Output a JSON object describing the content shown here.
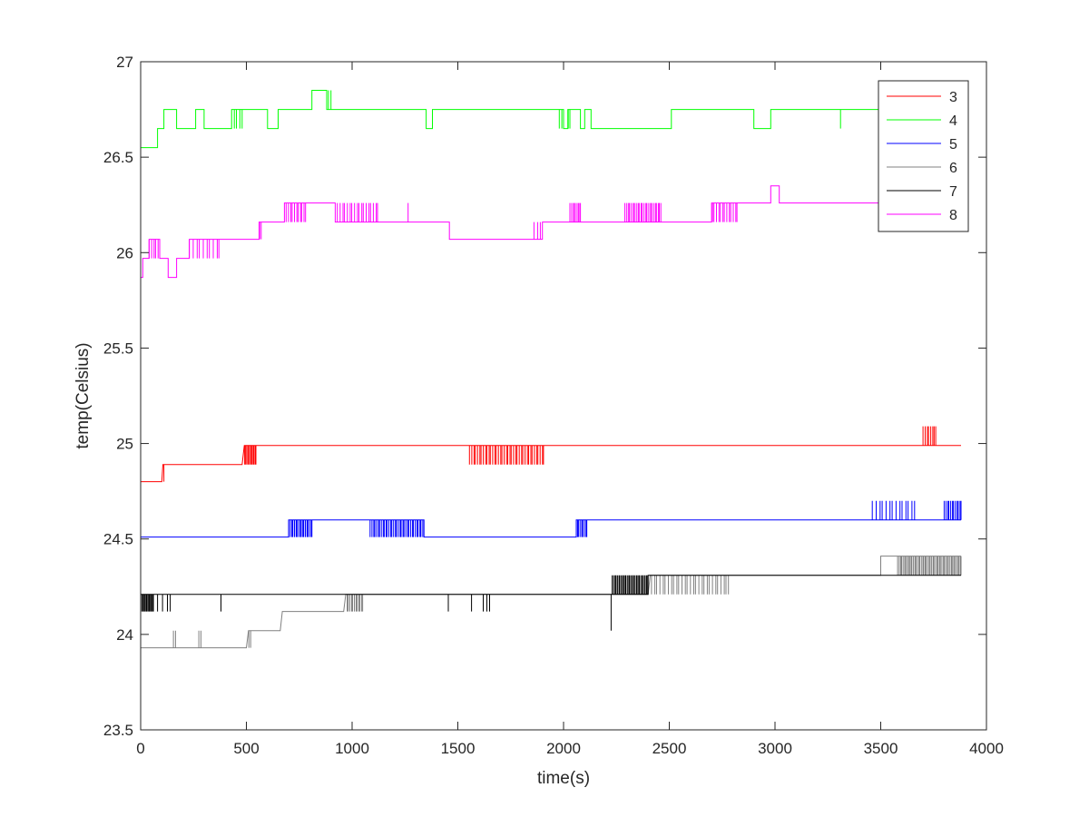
{
  "chart_data": {
    "type": "line",
    "title": "",
    "xlabel": "time(s)",
    "ylabel": "temp(Celsius)",
    "xlim": [
      0,
      4000
    ],
    "ylim": [
      23.5,
      27
    ],
    "xticks": [
      0,
      500,
      1000,
      1500,
      2000,
      2500,
      3000,
      3500,
      4000
    ],
    "yticks": [
      23.5,
      24,
      24.5,
      25,
      25.5,
      26,
      26.5,
      27
    ],
    "grid": false,
    "legend": {
      "position": "top-right",
      "entries": [
        "3",
        "4",
        "5",
        "6",
        "7",
        "8"
      ]
    },
    "series": [
      {
        "name": "3",
        "color": "#ff0000",
        "step": true,
        "points": [
          [
            0,
            24.8
          ],
          [
            100,
            24.8
          ],
          [
            105,
            24.89
          ],
          [
            480,
            24.89
          ],
          [
            490,
            24.99
          ],
          [
            3880,
            24.99
          ]
        ],
        "flicker": [
          {
            "from": 90,
            "to": 110,
            "count": 4,
            "value": 24.8
          },
          {
            "from": 480,
            "to": 545,
            "count": 14,
            "value": 24.89
          },
          {
            "from": 1555,
            "to": 1905,
            "count": 40,
            "value": 24.89
          },
          {
            "from": 3700,
            "to": 3760,
            "count": 8,
            "value": 25.09
          }
        ]
      },
      {
        "name": "4",
        "color": "#00ff00",
        "step": true,
        "points": [
          [
            0,
            26.55
          ],
          [
            80,
            26.55
          ],
          [
            80,
            26.65
          ],
          [
            110,
            26.65
          ],
          [
            110,
            26.75
          ],
          [
            170,
            26.75
          ],
          [
            170,
            26.65
          ],
          [
            260,
            26.65
          ],
          [
            260,
            26.75
          ],
          [
            300,
            26.75
          ],
          [
            300,
            26.65
          ],
          [
            430,
            26.65
          ],
          [
            430,
            26.75
          ],
          [
            600,
            26.75
          ],
          [
            600,
            26.65
          ],
          [
            650,
            26.65
          ],
          [
            650,
            26.75
          ],
          [
            810,
            26.75
          ],
          [
            810,
            26.85
          ],
          [
            880,
            26.85
          ],
          [
            880,
            26.75
          ],
          [
            1350,
            26.75
          ],
          [
            1350,
            26.65
          ],
          [
            1380,
            26.65
          ],
          [
            1380,
            26.75
          ],
          [
            2000,
            26.75
          ],
          [
            2000,
            26.65
          ],
          [
            2020,
            26.65
          ],
          [
            2020,
            26.75
          ],
          [
            2080,
            26.75
          ],
          [
            2080,
            26.65
          ],
          [
            2100,
            26.65
          ],
          [
            2100,
            26.75
          ],
          [
            2130,
            26.75
          ],
          [
            2130,
            26.65
          ],
          [
            2510,
            26.65
          ],
          [
            2510,
            26.75
          ],
          [
            2900,
            26.75
          ],
          [
            2900,
            26.65
          ],
          [
            2980,
            26.65
          ],
          [
            2980,
            26.75
          ],
          [
            3880,
            26.75
          ]
        ],
        "flicker": [
          {
            "from": 410,
            "to": 480,
            "count": 6,
            "value": 26.65
          },
          {
            "from": 600,
            "to": 650,
            "count": 6,
            "value": 26.65
          },
          {
            "from": 850,
            "to": 900,
            "count": 5,
            "value": 26.85
          },
          {
            "from": 1980,
            "to": 2030,
            "count": 6,
            "value": 26.65
          },
          {
            "from": 2250,
            "to": 2280,
            "count": 4,
            "value": 26.65
          },
          {
            "from": 3310,
            "to": 3315,
            "count": 1,
            "value": 26.65
          }
        ]
      },
      {
        "name": "5",
        "color": "#0000ff",
        "step": true,
        "points": [
          [
            0,
            24.51
          ],
          [
            700,
            24.51
          ],
          [
            700,
            24.6
          ],
          [
            1340,
            24.6
          ],
          [
            1340,
            24.51
          ],
          [
            2060,
            24.51
          ],
          [
            2060,
            24.6
          ],
          [
            3880,
            24.6
          ]
        ],
        "flicker": [
          {
            "from": 700,
            "to": 810,
            "count": 18,
            "value": 24.51
          },
          {
            "from": 1085,
            "to": 1340,
            "count": 36,
            "value": 24.51
          },
          {
            "from": 2050,
            "to": 2110,
            "count": 10,
            "value": 24.51
          },
          {
            "from": 3460,
            "to": 3660,
            "count": 14,
            "value": 24.7
          },
          {
            "from": 3800,
            "to": 3880,
            "count": 12,
            "value": 24.7
          }
        ]
      },
      {
        "name": "6",
        "color": "#808080",
        "step": true,
        "points": [
          [
            0,
            23.93
          ],
          [
            500,
            23.93
          ],
          [
            510,
            24.02
          ],
          [
            660,
            24.02
          ],
          [
            670,
            24.12
          ],
          [
            960,
            24.12
          ],
          [
            970,
            24.21
          ],
          [
            2400,
            24.21
          ],
          [
            2410,
            24.31
          ],
          [
            3500,
            24.31
          ],
          [
            3500,
            24.41
          ],
          [
            3880,
            24.41
          ]
        ],
        "flicker": [
          {
            "from": 155,
            "to": 165,
            "count": 2,
            "value": 24.02
          },
          {
            "from": 275,
            "to": 285,
            "count": 2,
            "value": 24.02
          },
          {
            "from": 500,
            "to": 520,
            "count": 3,
            "value": 23.93
          },
          {
            "from": 960,
            "to": 1050,
            "count": 14,
            "value": 24.12
          },
          {
            "from": 2400,
            "to": 2780,
            "count": 30,
            "value": 24.21
          },
          {
            "from": 3580,
            "to": 3880,
            "count": 50,
            "value": 24.31
          }
        ]
      },
      {
        "name": "7",
        "color": "#000000",
        "step": true,
        "points": [
          [
            0,
            24.21
          ],
          [
            2400,
            24.21
          ],
          [
            2400,
            24.31
          ],
          [
            3880,
            24.31
          ]
        ],
        "flicker": [
          {
            "from": 0,
            "to": 60,
            "count": 14,
            "value": 24.12
          },
          {
            "from": 80,
            "to": 140,
            "count": 4,
            "value": 24.12
          },
          {
            "from": 380,
            "to": 385,
            "count": 1,
            "value": 24.12
          },
          {
            "from": 1455,
            "to": 1460,
            "count": 1,
            "value": 24.12
          },
          {
            "from": 1565,
            "to": 1570,
            "count": 1,
            "value": 24.12
          },
          {
            "from": 1620,
            "to": 1650,
            "count": 3,
            "value": 24.12
          },
          {
            "from": 2225,
            "to": 2230,
            "count": 1,
            "value": 24.02
          },
          {
            "from": 2230,
            "to": 2400,
            "count": 30,
            "value": 24.31
          }
        ]
      },
      {
        "name": "8",
        "color": "#ff00ff",
        "step": true,
        "points": [
          [
            0,
            25.87
          ],
          [
            10,
            25.87
          ],
          [
            10,
            25.97
          ],
          [
            40,
            25.97
          ],
          [
            40,
            26.07
          ],
          [
            90,
            26.07
          ],
          [
            90,
            25.97
          ],
          [
            130,
            25.97
          ],
          [
            130,
            25.87
          ],
          [
            170,
            25.87
          ],
          [
            170,
            25.97
          ],
          [
            230,
            25.97
          ],
          [
            230,
            26.07
          ],
          [
            560,
            26.07
          ],
          [
            560,
            26.16
          ],
          [
            680,
            26.16
          ],
          [
            680,
            26.26
          ],
          [
            920,
            26.26
          ],
          [
            920,
            26.16
          ],
          [
            1460,
            26.16
          ],
          [
            1460,
            26.07
          ],
          [
            1900,
            26.07
          ],
          [
            1900,
            26.16
          ],
          [
            2700,
            26.16
          ],
          [
            2700,
            26.26
          ],
          [
            2980,
            26.26
          ],
          [
            2980,
            26.35
          ],
          [
            3020,
            26.35
          ],
          [
            3020,
            26.26
          ],
          [
            3880,
            26.26
          ]
        ],
        "flicker": [
          {
            "from": 40,
            "to": 90,
            "count": 6,
            "value": 25.97
          },
          {
            "from": 230,
            "to": 370,
            "count": 10,
            "value": 25.97
          },
          {
            "from": 540,
            "to": 570,
            "count": 5,
            "value": 26.07
          },
          {
            "from": 660,
            "to": 780,
            "count": 14,
            "value": 26.16
          },
          {
            "from": 930,
            "to": 1120,
            "count": 18,
            "value": 26.26
          },
          {
            "from": 1265,
            "to": 1270,
            "count": 1,
            "value": 26.26
          },
          {
            "from": 1860,
            "to": 1890,
            "count": 3,
            "value": 26.16
          },
          {
            "from": 2030,
            "to": 2080,
            "count": 8,
            "value": 26.26
          },
          {
            "from": 2290,
            "to": 2460,
            "count": 24,
            "value": 26.26
          },
          {
            "from": 2650,
            "to": 2820,
            "count": 18,
            "value": 26.16
          }
        ]
      }
    ]
  }
}
